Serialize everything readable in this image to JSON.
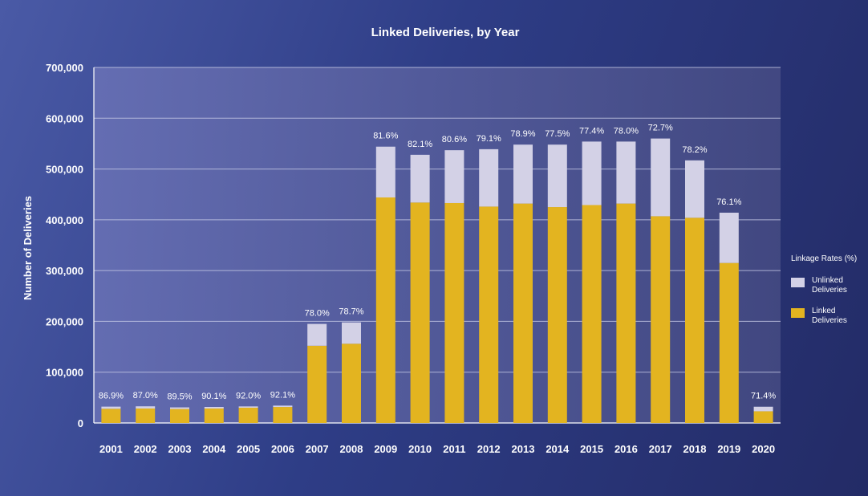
{
  "chart_data": {
    "type": "bar",
    "stacked": true,
    "title": "Linked Deliveries, by Year",
    "xlabel": "",
    "ylabel": "Number of Deliveries",
    "ylim": [
      0,
      700000
    ],
    "yticks": [
      0,
      100000,
      200000,
      300000,
      400000,
      500000,
      600000,
      700000
    ],
    "ytick_labels": [
      "0",
      "100,000",
      "200,000",
      "300,000",
      "400,000",
      "500,000",
      "600,000",
      "700,000"
    ],
    "grid": true,
    "categories": [
      "2001",
      "2002",
      "2003",
      "2004",
      "2005",
      "2006",
      "2007",
      "2008",
      "2009",
      "2010",
      "2011",
      "2012",
      "2013",
      "2014",
      "2015",
      "2016",
      "2017",
      "2018",
      "2019",
      "2020"
    ],
    "series": [
      {
        "name": "Linked Deliveries",
        "color": "#e3b420",
        "values": [
          28000,
          28500,
          27500,
          28500,
          30000,
          31500,
          152000,
          156000,
          444000,
          434000,
          433000,
          426000,
          432000,
          425000,
          429000,
          432000,
          407000,
          404000,
          315000,
          23000
        ]
      },
      {
        "name": "Unlinked Deliveries",
        "color": "#d3d1e6",
        "values": [
          4200,
          4300,
          3200,
          3100,
          2600,
          2700,
          43000,
          42000,
          100000,
          94000,
          104000,
          113000,
          116000,
          123000,
          125000,
          122000,
          153000,
          113000,
          99000,
          9000
        ]
      }
    ],
    "data_labels": [
      "86.9%",
      "87.0%",
      "89.5%",
      "90.1%",
      "92.0%",
      "92.1%",
      "78.0%",
      "78.7%",
      "81.6%",
      "82.1%",
      "80.6%",
      "79.1%",
      "78.9%",
      "77.5%",
      "77.4%",
      "78.0%",
      "72.7%",
      "78.2%",
      "76.1%",
      "71.4%"
    ],
    "legend": {
      "title": "Linkage Rates (%)",
      "placement": "right",
      "entries": [
        {
          "line1": "Unlinked",
          "line2": "Deliveries",
          "color": "#d3d1e6"
        },
        {
          "line1": "Linked",
          "line2": "Deliveries",
          "color": "#e3b420"
        }
      ]
    }
  }
}
